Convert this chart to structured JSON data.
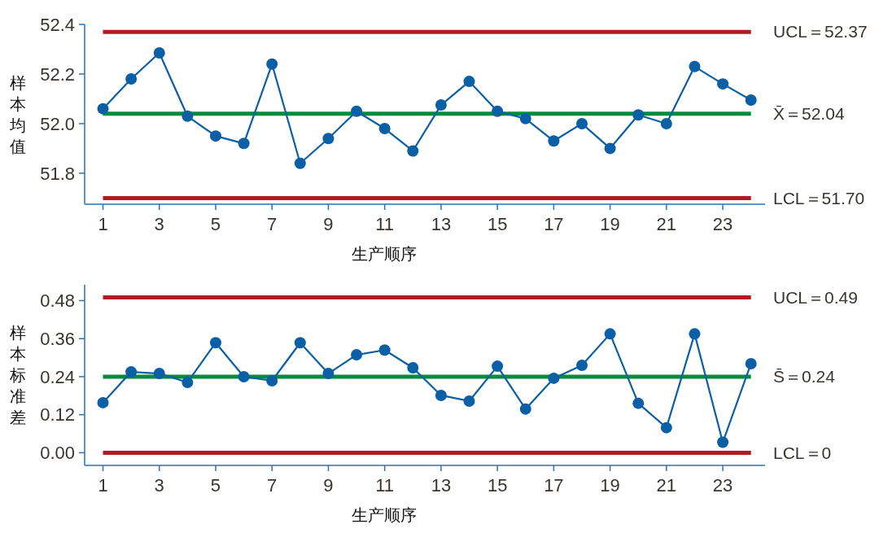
{
  "chart_data": [
    {
      "type": "line",
      "xlabel": "生产顺序",
      "ylabel": "样本均值",
      "x": [
        1,
        2,
        3,
        4,
        5,
        6,
        7,
        8,
        9,
        10,
        11,
        12,
        13,
        14,
        15,
        16,
        17,
        18,
        19,
        20,
        21,
        22,
        23,
        24
      ],
      "xlim": [
        0.35,
        24.5
      ],
      "xticks": [
        1,
        3,
        5,
        7,
        9,
        11,
        13,
        15,
        17,
        19,
        21,
        23
      ],
      "ylim": [
        51.675,
        52.4
      ],
      "yticks": [
        {
          "value": 51.8,
          "label": "51.8"
        },
        {
          "value": 52.0,
          "label": "52.0"
        },
        {
          "value": 52.2,
          "label": "52.2"
        },
        {
          "value": 52.4,
          "label": "52.4"
        }
      ],
      "marker": "circle",
      "grid": false,
      "series": [
        {
          "color": "#0b5fa5",
          "values": [
            52.06,
            52.18,
            52.285,
            52.03,
            51.95,
            51.92,
            52.24,
            51.84,
            51.94,
            52.05,
            51.98,
            51.89,
            52.075,
            52.17,
            52.05,
            52.02,
            51.93,
            52.0,
            51.9,
            52.035,
            52.0,
            52.23,
            52.16,
            52.095
          ]
        }
      ],
      "ref_lines": [
        {
          "axis": "y",
          "value": 52.37,
          "label": "UCL＝52.37",
          "color": "#b01c22"
        },
        {
          "axis": "y",
          "value": 52.04,
          "label": "X̄＝52.04",
          "color": "#068a3c"
        },
        {
          "axis": "y",
          "value": 51.7,
          "label": "LCL＝51.70",
          "color": "#b01c22"
        }
      ]
    },
    {
      "type": "line",
      "xlabel": "生产顺序",
      "ylabel": "样本标准差",
      "x": [
        1,
        2,
        3,
        4,
        5,
        6,
        7,
        8,
        9,
        10,
        11,
        12,
        13,
        14,
        15,
        16,
        17,
        18,
        19,
        20,
        21,
        22,
        23,
        24
      ],
      "xlim": [
        0.35,
        24.5
      ],
      "xticks": [
        1,
        3,
        5,
        7,
        9,
        11,
        13,
        15,
        17,
        19,
        21,
        23
      ],
      "ylim": [
        -0.04,
        0.53
      ],
      "yticks": [
        {
          "value": 0,
          "label": "0.00"
        },
        0.12,
        0.24,
        0.36,
        0.48
      ],
      "marker": "circle",
      "grid": false,
      "series": [
        {
          "color": "#0b5fa5",
          "values": [
            0.158,
            0.255,
            0.25,
            0.222,
            0.347,
            0.24,
            0.227,
            0.347,
            0.25,
            0.309,
            0.324,
            0.268,
            0.181,
            0.163,
            0.273,
            0.138,
            0.235,
            0.276,
            0.375,
            0.156,
            0.079,
            0.375,
            0.033,
            0.281
          ]
        }
      ],
      "ref_lines": [
        {
          "axis": "y",
          "value": 0.49,
          "label": "UCL＝0.49",
          "color": "#b01c22"
        },
        {
          "axis": "y",
          "value": 0.24,
          "label": "S̄＝0.24",
          "color": "#068a3c"
        },
        {
          "axis": "y",
          "value": 0,
          "label": "LCL＝0",
          "color": "#b01c22"
        }
      ]
    }
  ]
}
